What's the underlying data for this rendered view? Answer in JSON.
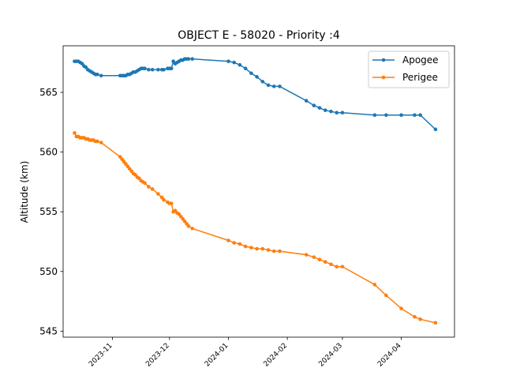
{
  "chart_data": {
    "type": "line",
    "title": "OBJECT E - 58020 - Priority :4",
    "xlabel": "",
    "ylabel": "Altitude (km)",
    "ylim": [
      544.5,
      568.9
    ],
    "xlim": [
      "2023-10-06",
      "2024-04-29"
    ],
    "yticks": [
      545,
      550,
      555,
      560,
      565
    ],
    "xticks": [
      "2023-11",
      "2023-12",
      "2024-01",
      "2024-02",
      "2024-03",
      "2024-04"
    ],
    "grid": false,
    "legend_position": "top-right",
    "series": [
      {
        "name": "Apogee",
        "color": "#1f77b4",
        "x": [
          "2023-10-12",
          "2023-10-13",
          "2023-10-14",
          "2023-10-15",
          "2023-10-16",
          "2023-10-17",
          "2023-10-18",
          "2023-10-19",
          "2023-10-20",
          "2023-10-21",
          "2023-10-22",
          "2023-10-23",
          "2023-10-24",
          "2023-10-26",
          "2023-11-05",
          "2023-11-06",
          "2023-11-07",
          "2023-11-08",
          "2023-11-09",
          "2023-11-10",
          "2023-11-11",
          "2023-11-12",
          "2023-11-13",
          "2023-11-14",
          "2023-11-15",
          "2023-11-16",
          "2023-11-17",
          "2023-11-18",
          "2023-11-20",
          "2023-11-22",
          "2023-11-25",
          "2023-11-27",
          "2023-11-28",
          "2023-11-30",
          "2023-12-01",
          "2023-12-02",
          "2023-12-03",
          "2023-12-04",
          "2023-12-05",
          "2023-12-06",
          "2023-12-07",
          "2023-12-08",
          "2023-12-09",
          "2023-12-10",
          "2023-12-11",
          "2023-12-13",
          "2024-01-01",
          "2024-01-04",
          "2024-01-07",
          "2024-01-10",
          "2024-01-13",
          "2024-01-16",
          "2024-01-19",
          "2024-01-22",
          "2024-01-25",
          "2024-01-28",
          "2024-02-11",
          "2024-02-15",
          "2024-02-18",
          "2024-02-21",
          "2024-02-24",
          "2024-02-27",
          "2024-03-01",
          "2024-03-18",
          "2024-03-24",
          "2024-04-01",
          "2024-04-08",
          "2024-04-11",
          "2024-04-19"
        ],
        "values": [
          567.6,
          567.6,
          567.6,
          567.5,
          567.4,
          567.2,
          567.1,
          566.9,
          566.8,
          566.7,
          566.6,
          566.5,
          566.5,
          566.4,
          566.4,
          566.4,
          566.4,
          566.4,
          566.5,
          566.5,
          566.6,
          566.7,
          566.7,
          566.8,
          566.9,
          567.0,
          567.0,
          567.0,
          566.9,
          566.9,
          566.9,
          566.9,
          566.9,
          567.0,
          567.0,
          567.0,
          567.6,
          567.4,
          567.5,
          567.6,
          567.7,
          567.7,
          567.8,
          567.8,
          567.8,
          567.8,
          567.6,
          567.5,
          567.3,
          567.0,
          566.6,
          566.3,
          565.9,
          565.6,
          565.5,
          565.5,
          564.3,
          563.9,
          563.7,
          563.5,
          563.4,
          563.3,
          563.3,
          563.1,
          563.1,
          563.1,
          563.1,
          563.1,
          561.9
        ]
      },
      {
        "name": "Perigee",
        "color": "#ff7f0e",
        "x": [
          "2023-10-12",
          "2023-10-13",
          "2023-10-14",
          "2023-10-15",
          "2023-10-16",
          "2023-10-17",
          "2023-10-18",
          "2023-10-19",
          "2023-10-20",
          "2023-10-21",
          "2023-10-22",
          "2023-10-23",
          "2023-10-24",
          "2023-10-26",
          "2023-11-05",
          "2023-11-06",
          "2023-11-07",
          "2023-11-08",
          "2023-11-09",
          "2023-11-10",
          "2023-11-11",
          "2023-11-12",
          "2023-11-13",
          "2023-11-14",
          "2023-11-15",
          "2023-11-16",
          "2023-11-17",
          "2023-11-18",
          "2023-11-20",
          "2023-11-22",
          "2023-11-25",
          "2023-11-27",
          "2023-11-28",
          "2023-11-30",
          "2023-12-01",
          "2023-12-02",
          "2023-12-03",
          "2023-12-04",
          "2023-12-05",
          "2023-12-06",
          "2023-12-07",
          "2023-12-08",
          "2023-12-09",
          "2023-12-10",
          "2023-12-11",
          "2023-12-13",
          "2024-01-01",
          "2024-01-04",
          "2024-01-07",
          "2024-01-10",
          "2024-01-13",
          "2024-01-16",
          "2024-01-19",
          "2024-01-22",
          "2024-01-25",
          "2024-01-28",
          "2024-02-11",
          "2024-02-15",
          "2024-02-18",
          "2024-02-21",
          "2024-02-24",
          "2024-02-27",
          "2024-03-01",
          "2024-03-18",
          "2024-03-24",
          "2024-04-01",
          "2024-04-08",
          "2024-04-11",
          "2024-04-19"
        ],
        "values": [
          561.6,
          561.3,
          561.3,
          561.2,
          561.2,
          561.2,
          561.1,
          561.1,
          561.0,
          561.0,
          561.0,
          560.9,
          560.9,
          560.8,
          559.6,
          559.4,
          559.2,
          559.0,
          558.8,
          558.6,
          558.4,
          558.2,
          558.1,
          557.9,
          557.8,
          557.6,
          557.5,
          557.4,
          557.1,
          556.9,
          556.5,
          556.2,
          556.0,
          555.8,
          555.7,
          555.7,
          555.0,
          555.1,
          554.9,
          554.8,
          554.6,
          554.4,
          554.2,
          554.0,
          553.8,
          553.6,
          552.6,
          552.4,
          552.3,
          552.1,
          552.0,
          551.9,
          551.9,
          551.8,
          551.7,
          551.7,
          551.4,
          551.2,
          551.0,
          550.8,
          550.6,
          550.4,
          550.4,
          548.9,
          548.0,
          546.9,
          546.2,
          546.0,
          545.7
        ]
      }
    ]
  }
}
